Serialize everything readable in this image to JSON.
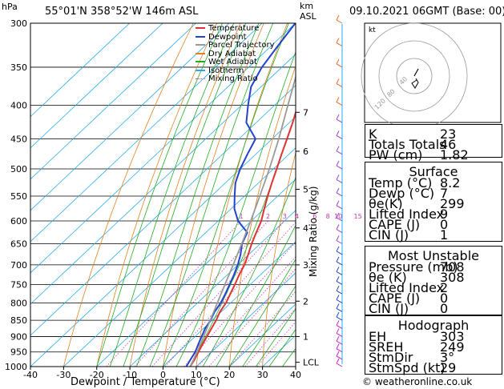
{
  "header": {
    "hpa_label": "hPa",
    "location": "55°01'N  358°52'W  146m  ASL",
    "km_label": "km",
    "asl_label": "ASL",
    "datetime": "09.10.2021  06GMT  (Base: 00)"
  },
  "footer": {
    "xlabel": "Dewpoint / Temperature (°C)",
    "mixing_label": "Mixing Ratio (g/kg)",
    "credit": "© weatheronline.co.uk"
  },
  "legend": [
    {
      "label": "Temperature",
      "color": "#dd3333",
      "style": "solid"
    },
    {
      "label": "Dewpoint",
      "color": "#2244cc",
      "style": "solid"
    },
    {
      "label": "Parcel Trajectory",
      "color": "#999999",
      "style": "solid"
    },
    {
      "label": "Dry Adiabat",
      "color": "#e08020",
      "style": "solid"
    },
    {
      "label": "Wet Adiabat",
      "color": "#22aa22",
      "style": "solid"
    },
    {
      "label": "Isotherm",
      "color": "#22aaee",
      "style": "solid"
    },
    {
      "label": "Mixing Ratio",
      "color": "#cc33aa",
      "style": "dotted"
    }
  ],
  "chart_data": {
    "type": "line",
    "title": "Skew-T log-P diagram",
    "xlabel": "Dewpoint / Temperature (°C)",
    "ylabel": "hPa",
    "xlim": [
      -40,
      40
    ],
    "ylim": [
      1000,
      300
    ],
    "x_ticks": [
      "-40",
      "-30",
      "-20",
      "-10",
      "0",
      "10",
      "20",
      "30",
      "40"
    ],
    "pressure_levels": [
      "300",
      "350",
      "400",
      "450",
      "500",
      "550",
      "600",
      "650",
      "700",
      "750",
      "800",
      "850",
      "900",
      "950",
      "1000"
    ],
    "km_ticks": [
      {
        "label": "7",
        "p": 410
      },
      {
        "label": "6",
        "p": 470
      },
      {
        "label": "5",
        "p": 537
      },
      {
        "label": "4",
        "p": 615
      },
      {
        "label": "3",
        "p": 700
      },
      {
        "label": "2",
        "p": 795
      },
      {
        "label": "1",
        "p": 900
      },
      {
        "label": "LCL",
        "p": 985
      }
    ],
    "mixing_ratio_labels": [
      "1",
      "2",
      "3",
      "4",
      "6",
      "8",
      "10",
      "15",
      "20",
      "25"
    ],
    "mixing_ratio_values": [
      1,
      2,
      3,
      4,
      6,
      8,
      10,
      15,
      20,
      25
    ],
    "series": [
      {
        "name": "Temperature",
        "p": [
          1000,
          975,
          950,
          925,
          900,
          875,
          850,
          825,
          800,
          775,
          750,
          725,
          700,
          675,
          650,
          625,
          600,
          575,
          550,
          525,
          500,
          475,
          450,
          425,
          400,
          375,
          350,
          325,
          300
        ],
        "values": [
          8.2,
          7.2,
          6.0,
          4.8,
          3.6,
          2.4,
          1.2,
          -0.4,
          -1.4,
          -3.0,
          -4.6,
          -6.4,
          -8.0,
          -10.2,
          -12.6,
          -14.8,
          -17.0,
          -20.0,
          -23.0,
          -26.0,
          -29.0,
          -32.2,
          -35.5,
          -39.0,
          -43.0,
          -45.5,
          -47.0,
          -50.5,
          -55.0
        ]
      },
      {
        "name": "Dewpoint",
        "p": [
          1000,
          975,
          950,
          925,
          900,
          875,
          850,
          825,
          800,
          775,
          750,
          725,
          700,
          675,
          650,
          625,
          600,
          575,
          550,
          525,
          500,
          475,
          450,
          425,
          400,
          375,
          350,
          325,
          300
        ],
        "values": [
          7.0,
          6.0,
          5.0,
          3.5,
          2.0,
          0.5,
          -0.5,
          -2.0,
          -3.0,
          -4.5,
          -6.2,
          -8.0,
          -10.0,
          -12.5,
          -15.5,
          -17.5,
          -24.0,
          -29.0,
          -33.0,
          -37.0,
          -40.0,
          -42.5,
          -45.0,
          -53.0,
          -58.0,
          -63.0,
          -66.0,
          -68.0,
          -70.0
        ]
      },
      {
        "name": "Parcel Trajectory",
        "p": [
          1000,
          950,
          900,
          850,
          800,
          750,
          700,
          650,
          600,
          550,
          500,
          450,
          400,
          350,
          300
        ],
        "values": [
          8.2,
          5.6,
          2.6,
          -0.6,
          -4.0,
          -7.6,
          -11.4,
          -15.6,
          -20.2,
          -25.4,
          -31.2,
          -38.0,
          -46.0,
          -55.0,
          -65.0
        ]
      }
    ],
    "hodograph": {
      "label": "kt",
      "ring_labels": [
        "40",
        "80",
        "120"
      ]
    }
  },
  "indices": [
    {
      "label": "K",
      "value": "23"
    },
    {
      "label": "Totals Totals",
      "value": "46"
    },
    {
      "label": "PW (cm)",
      "value": "1.82"
    }
  ],
  "surface": {
    "title": "Surface",
    "rows": [
      {
        "label": "Temp (°C)",
        "value": "8.2"
      },
      {
        "label": "Dewp (°C)",
        "value": "7"
      },
      {
        "label": "θe(K)",
        "value": "299"
      },
      {
        "label": "Lifted Index",
        "value": "9"
      },
      {
        "label": "CAPE (J)",
        "value": "0"
      },
      {
        "label": "CIN (J)",
        "value": "1"
      }
    ]
  },
  "most_unstable": {
    "title": "Most Unstable",
    "rows": [
      {
        "label": "Pressure (mb)",
        "value": "708"
      },
      {
        "label": "θe (K)",
        "value": "308"
      },
      {
        "label": "Lifted Index",
        "value": "2"
      },
      {
        "label": "CAPE (J)",
        "value": "0"
      },
      {
        "label": "CIN (J)",
        "value": "0"
      }
    ]
  },
  "hodograph_table": {
    "title": "Hodograph",
    "rows": [
      {
        "label": "EH",
        "value": "303"
      },
      {
        "label": "SREH",
        "value": "249"
      },
      {
        "label": "StmDir",
        "value": "3°"
      },
      {
        "label": "StmSpd (kt)",
        "value": "29"
      }
    ]
  }
}
